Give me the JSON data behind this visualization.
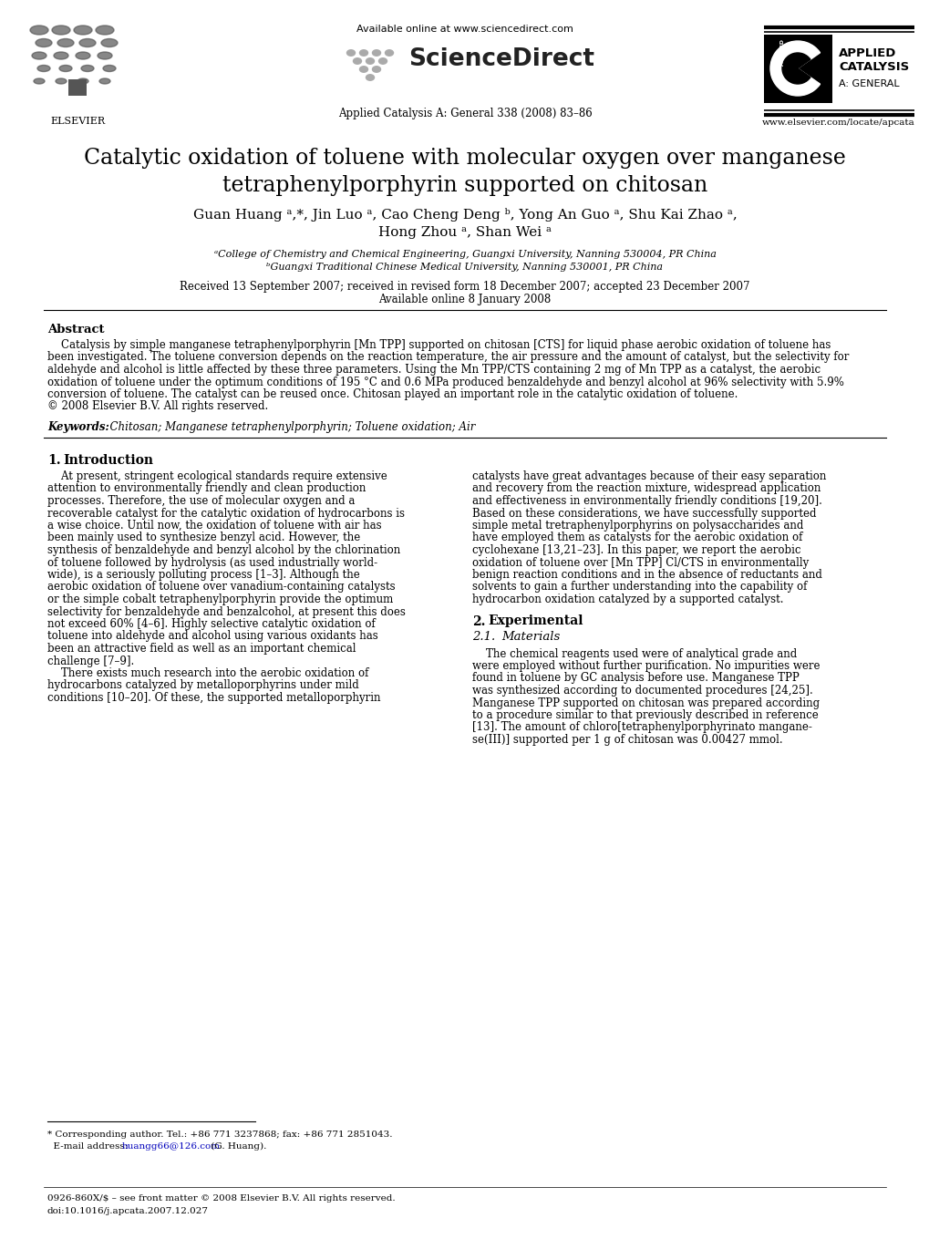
{
  "title_line1": "Catalytic oxidation of toluene with molecular oxygen over manganese",
  "title_line2": "tetraphenylporphyrin supported on chitosan",
  "authors_line1": "Guan Huang ᵃ,*, Jin Luo ᵃ, Cao Cheng Deng ᵇ, Yong An Guo ᵃ, Shu Kai Zhao ᵃ,",
  "authors_line2": "Hong Zhou ᵃ, Shan Wei ᵃ",
  "affil_a": "ᵃCollege of Chemistry and Chemical Engineering, Guangxi University, Nanning 530004, PR China",
  "affil_b": "ᵇGuangxi Traditional Chinese Medical University, Nanning 530001, PR China",
  "received": "Received 13 September 2007; received in revised form 18 December 2007; accepted 23 December 2007",
  "available": "Available online 8 January 2008",
  "journal": "Applied Catalysis A: General 338 (2008) 83–86",
  "available_online": "Available online at www.sciencedirect.com",
  "website": "www.elsevier.com/locate/apcata",
  "abstract_title": "Abstract",
  "keywords_label": "Keywords:",
  "keywords_text": "  Chitosan; Manganese tetraphenylporphyrin; Toluene oxidation; Air",
  "footer_left": "0926-860X/$ – see front matter © 2008 Elsevier B.V. All rights reserved.",
  "footer_doi": "doi:10.1016/j.apcata.2007.12.027",
  "bg_color": "#ffffff",
  "text_color": "#000000",
  "link_color": "#0000bb"
}
